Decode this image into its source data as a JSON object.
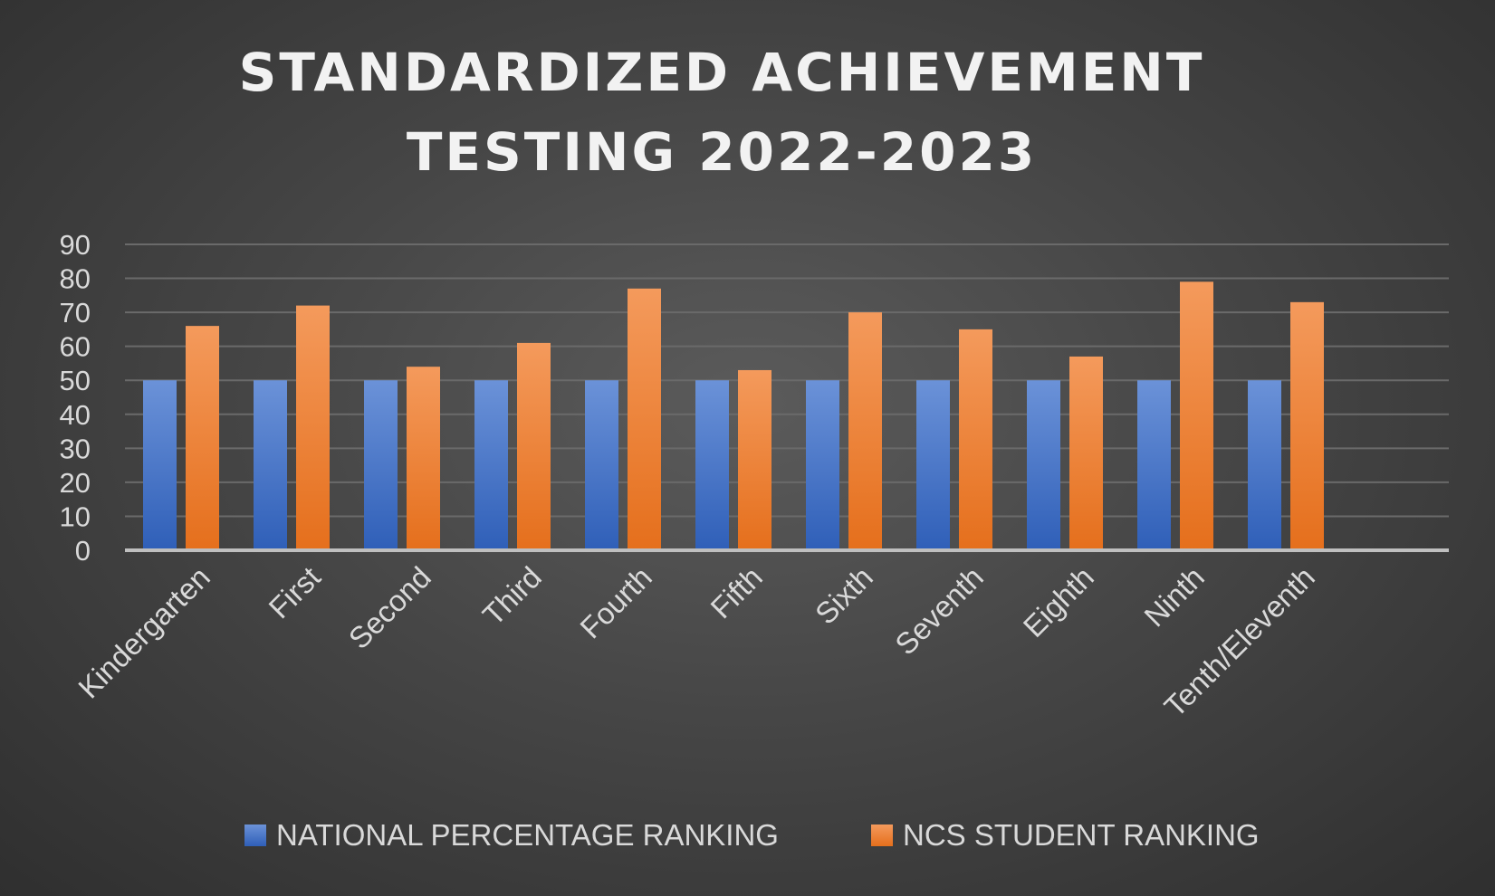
{
  "chart_data": {
    "type": "bar",
    "title": "STANDARDIZED ACHIEVEMENT TESTING 2022-2023",
    "title_lines": [
      "STANDARDIZED ACHIEVEMENT",
      "TESTING 2022-2023"
    ],
    "categories": [
      "Kindergarten",
      "First",
      "Second",
      "Third",
      "Fourth",
      "Fifth",
      "Sixth",
      "Seventh",
      "Eighth",
      "Ninth",
      "Tenth/Eleventh"
    ],
    "series": [
      {
        "name": "NATIONAL PERCENTAGE RANKING",
        "color": "#4472c4",
        "values": [
          50,
          50,
          50,
          50,
          50,
          50,
          50,
          50,
          50,
          50,
          50
        ]
      },
      {
        "name": "NCS STUDENT RANKING",
        "color": "#ed7d31",
        "values": [
          66,
          72,
          54,
          61,
          77,
          53,
          70,
          65,
          57,
          79,
          73
        ]
      }
    ],
    "ylim": [
      0,
      90
    ],
    "yticks": [
      0,
      10,
      20,
      30,
      40,
      50,
      60,
      70,
      80,
      90
    ],
    "grid": true,
    "legend_position": "bottom"
  }
}
